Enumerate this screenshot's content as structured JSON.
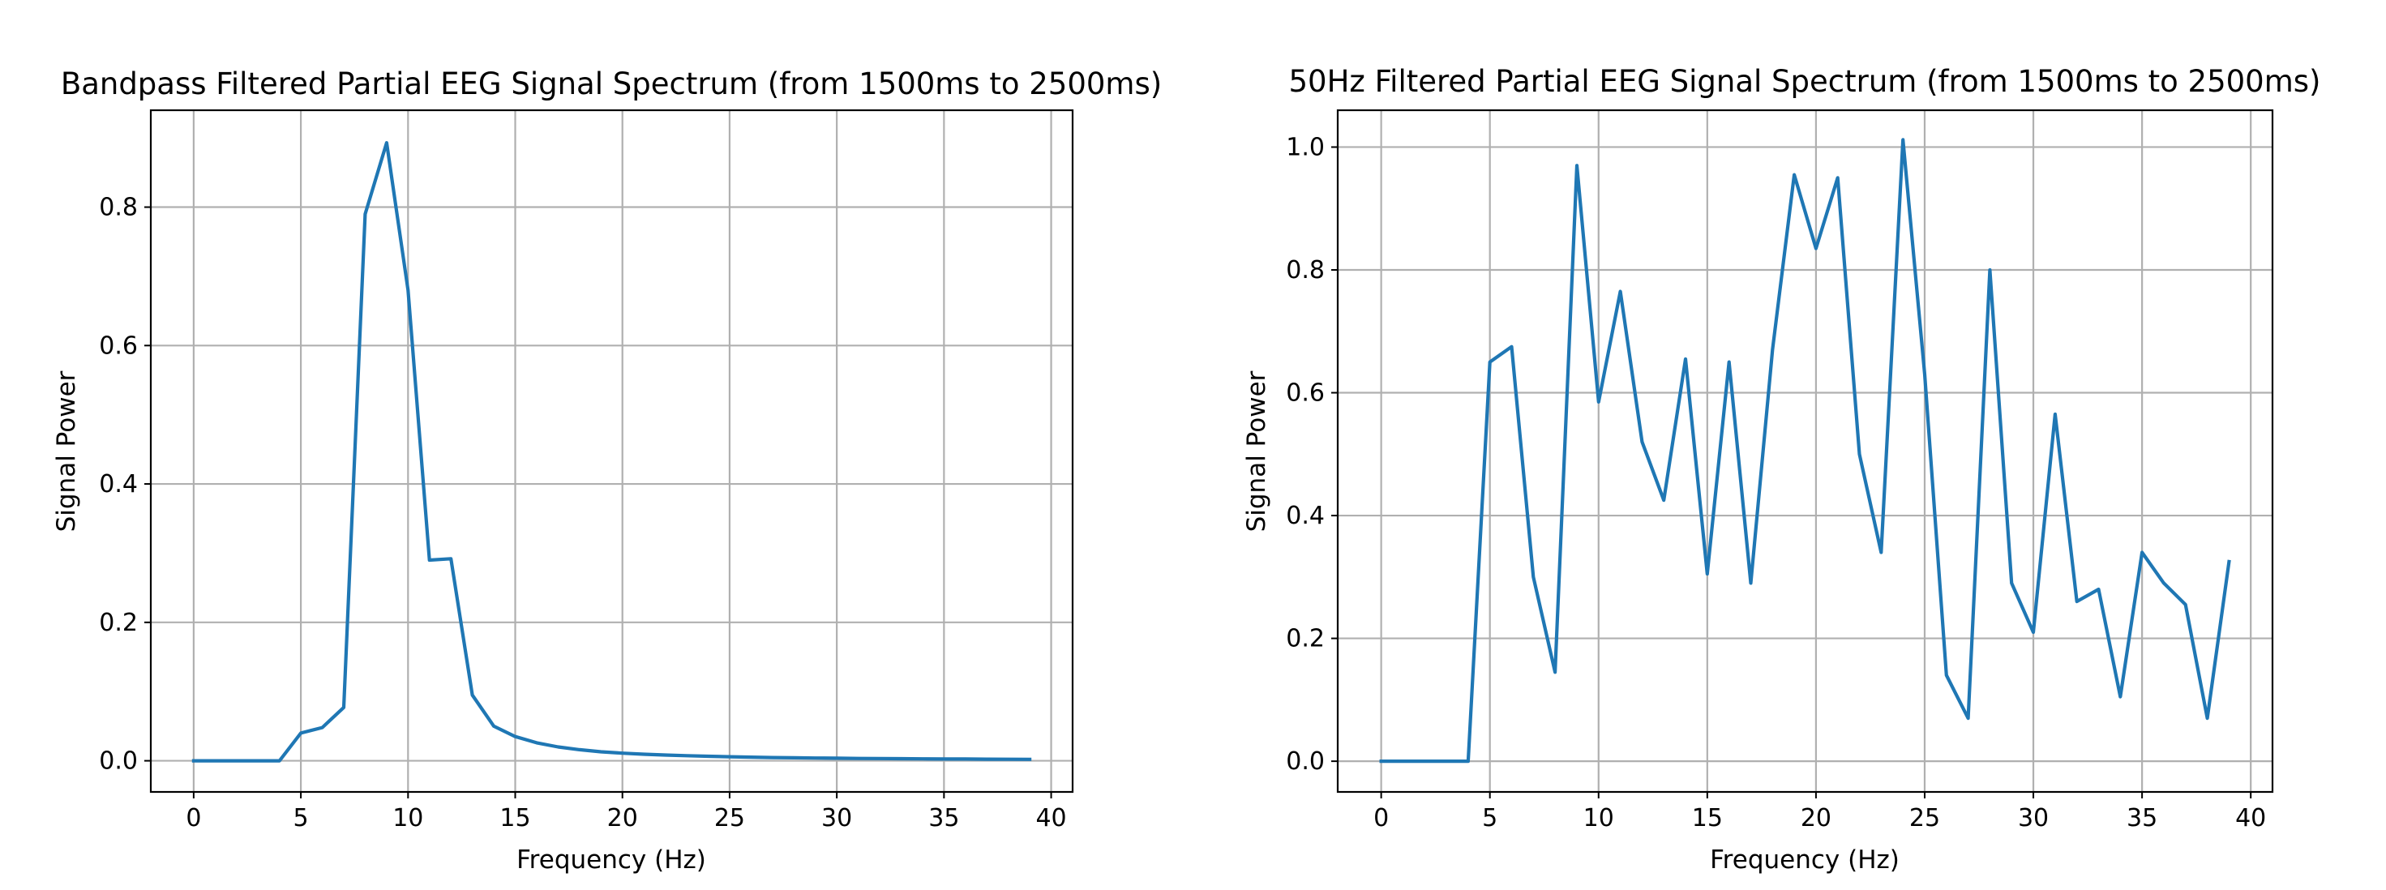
{
  "chart_data": [
    {
      "type": "line",
      "title": "Bandpass Filtered Partial EEG Signal Spectrum (from 1500ms to 2500ms)",
      "xlabel": "Frequency (Hz)",
      "ylabel": "Signal Power",
      "xlim": [
        -2,
        41
      ],
      "ylim": [
        -0.045,
        0.94
      ],
      "xticks": [
        0,
        5,
        10,
        15,
        20,
        25,
        30,
        35,
        40
      ],
      "yticks": [
        0.0,
        0.2,
        0.4,
        0.6,
        0.8
      ],
      "ytick_labels": [
        "0.0",
        "0.2",
        "0.4",
        "0.6",
        "0.8"
      ],
      "grid": true,
      "legend": "none",
      "series": [
        {
          "color": "#1f77b4",
          "x": [
            0,
            1,
            2,
            3,
            4,
            5,
            6,
            7,
            8,
            9,
            10,
            11,
            12,
            13,
            14,
            15,
            16,
            17,
            18,
            19,
            20,
            21,
            22,
            23,
            24,
            25,
            26,
            27,
            28,
            29,
            30,
            31,
            32,
            33,
            34,
            35,
            36,
            37,
            38,
            39
          ],
          "y": [
            0,
            0,
            0,
            0,
            0,
            0.04,
            0.048,
            0.077,
            0.79,
            0.893,
            0.68,
            0.29,
            0.292,
            0.095,
            0.05,
            0.035,
            0.026,
            0.02,
            0.016,
            0.013,
            0.011,
            0.0095,
            0.0083,
            0.0073,
            0.0065,
            0.0058,
            0.0052,
            0.0047,
            0.0043,
            0.004,
            0.0037,
            0.0034,
            0.0032,
            0.003,
            0.0028,
            0.0026,
            0.0025,
            0.0023,
            0.0022,
            0.0021
          ]
        }
      ]
    },
    {
      "type": "line",
      "title": "50Hz Filtered Partial EEG Signal Spectrum (from 1500ms to 2500ms)",
      "xlabel": "Frequency (Hz)",
      "ylabel": "Signal Power",
      "xlim": [
        -2,
        41
      ],
      "ylim": [
        -0.05,
        1.06
      ],
      "xticks": [
        0,
        5,
        10,
        15,
        20,
        25,
        30,
        35,
        40
      ],
      "yticks": [
        0.0,
        0.2,
        0.4,
        0.6,
        0.8,
        1.0
      ],
      "ytick_labels": [
        "0.0",
        "0.2",
        "0.4",
        "0.6",
        "0.8",
        "1.0"
      ],
      "grid": true,
      "legend": "none",
      "series": [
        {
          "color": "#1f77b4",
          "x": [
            0,
            1,
            2,
            3,
            4,
            5,
            6,
            7,
            8,
            9,
            10,
            11,
            12,
            13,
            14,
            15,
            16,
            17,
            18,
            19,
            20,
            21,
            22,
            23,
            24,
            25,
            26,
            27,
            28,
            29,
            30,
            31,
            32,
            33,
            34,
            35,
            36,
            37,
            38,
            39
          ],
          "y": [
            0,
            0,
            0,
            0,
            0,
            0.65,
            0.675,
            0.3,
            0.145,
            0.97,
            0.585,
            0.765,
            0.52,
            0.425,
            0.655,
            0.305,
            0.65,
            0.29,
            0.67,
            0.955,
            0.835,
            0.95,
            0.5,
            0.34,
            1.012,
            0.63,
            0.14,
            0.07,
            0.8,
            0.29,
            0.21,
            0.565,
            0.26,
            0.28,
            0.105,
            0.34,
            0.29,
            0.255,
            0.07,
            0.325
          ]
        }
      ]
    }
  ]
}
